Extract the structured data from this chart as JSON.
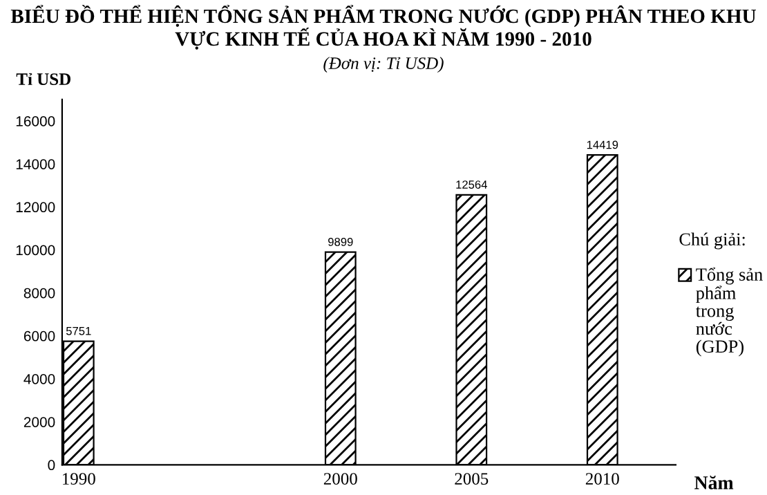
{
  "chart_data": {
    "type": "bar",
    "title": "BIỂU ĐỒ THỂ HIỆN TỔNG SẢN PHẨM TRONG NƯỚC (GDP) PHÂN THEO KHU VỰC KINH TẾ CỦA HOA KÌ NĂM 1990 - 2010",
    "subtitle": "(Đơn vị: Tỉ USD)",
    "xlabel": "Năm",
    "ylabel": "Tỉ USD",
    "legend_title": "Chú giải:",
    "x": [
      1990,
      2000,
      2005,
      2010
    ],
    "series": [
      {
        "name": "Tổng sản phẩm trong nước (GDP)",
        "color": "#000000",
        "values": [
          5751,
          9899,
          12564,
          14419
        ]
      }
    ],
    "xlim": [
      1989.37,
      2012.8
    ],
    "xticks": [
      1990,
      2000,
      2005,
      2010
    ],
    "ylim": [
      0,
      17000
    ],
    "yticks": [
      0,
      2000,
      4000,
      6000,
      8000,
      10000,
      12000,
      14000,
      16000
    ],
    "data_labels": true,
    "grid": false,
    "legend": "right"
  }
}
